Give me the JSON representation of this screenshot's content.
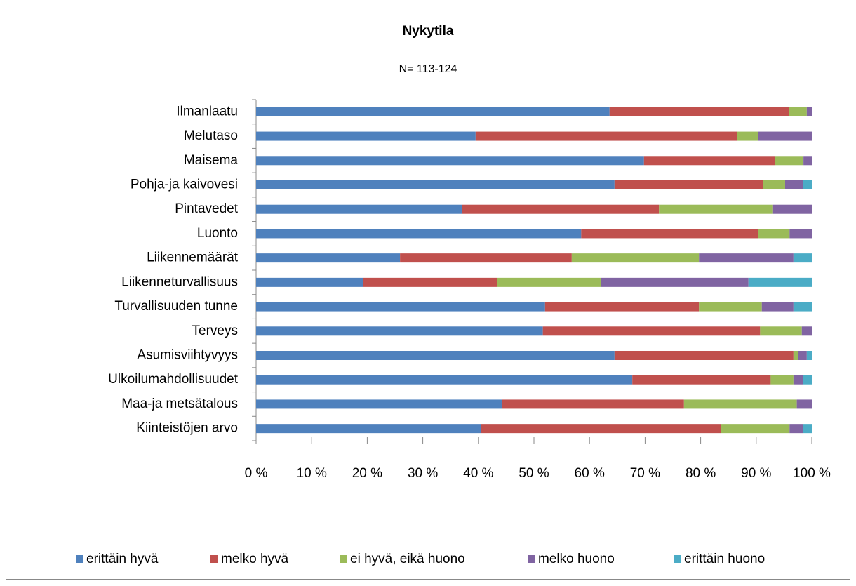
{
  "chart_data": {
    "type": "stacked-bar-horizontal",
    "title": "Nykytila",
    "subtitle": "N= 113-124",
    "categories": [
      "Ilmanlaatu",
      "Melutaso",
      "Maisema",
      "Pohja-ja kaivovesi",
      "Pintavedet",
      "Luonto",
      "Liikennemäärät",
      "Liikenneturvallisuus",
      "Turvallisuuden tunne",
      "Terveys",
      "Asumisviihtyvyys",
      "Ulkoilumahdollisuudet",
      "Maa-ja metsätalous",
      "Kiinteistöjen arvo"
    ],
    "series": [
      {
        "name": "erittäin hyvä",
        "color": "#4f81bd",
        "values": [
          63.6,
          39.5,
          69.8,
          64.5,
          37.1,
          58.5,
          25.9,
          19.3,
          52.0,
          51.6,
          64.5,
          67.7,
          44.2,
          40.5
        ]
      },
      {
        "name": "melko hyvä",
        "color": "#c0504d",
        "values": [
          32.3,
          47.1,
          23.6,
          26.7,
          35.4,
          31.8,
          30.9,
          24.1,
          27.7,
          39.1,
          32.2,
          24.9,
          32.8,
          43.2
        ]
      },
      {
        "name": "ei hyvä, eikä huono",
        "color": "#9bbb59",
        "values": [
          3.2,
          3.7,
          5.1,
          4.0,
          20.4,
          5.7,
          22.9,
          18.6,
          11.3,
          7.5,
          0.9,
          4.1,
          20.3,
          12.3
        ]
      },
      {
        "name": "melko huono",
        "color": "#8064a2",
        "values": [
          0.9,
          9.7,
          1.5,
          3.2,
          7.1,
          4.0,
          17.0,
          26.6,
          5.7,
          1.8,
          1.5,
          1.7,
          2.7,
          2.4
        ]
      },
      {
        "name": "erittäin huono",
        "color": "#4bacc6",
        "values": [
          0,
          0,
          0,
          1.6,
          0,
          0,
          3.3,
          11.4,
          3.3,
          0,
          0.9,
          1.6,
          0,
          1.6
        ]
      }
    ],
    "xlim": [
      0,
      100
    ],
    "xticks": [
      {
        "value": 0,
        "label": "0 %"
      },
      {
        "value": 10,
        "label": "10 %"
      },
      {
        "value": 20,
        "label": "20 %"
      },
      {
        "value": 30,
        "label": "30 %"
      },
      {
        "value": 40,
        "label": "40 %"
      },
      {
        "value": 50,
        "label": "50 %"
      },
      {
        "value": 60,
        "label": "60 %"
      },
      {
        "value": 70,
        "label": "70 %"
      },
      {
        "value": 80,
        "label": "80 %"
      },
      {
        "value": 90,
        "label": "90 %"
      },
      {
        "value": 100,
        "label": "100 %"
      }
    ],
    "legend": "bottom"
  }
}
